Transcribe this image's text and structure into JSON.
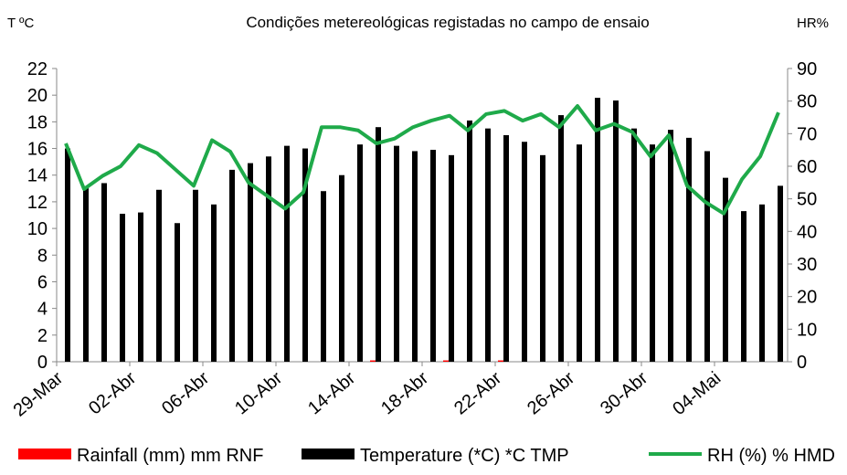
{
  "chart_data": {
    "type": "bar-line",
    "title": "Condições metereológicas registadas no campo de ensaio",
    "y_label": "T ºC",
    "y2_label": "HR%",
    "categories": [
      "29-Mar",
      null,
      null,
      null,
      "02-Abr",
      null,
      null,
      null,
      "06-Abr",
      null,
      null,
      null,
      "10-Abr",
      null,
      null,
      null,
      "14-Abr",
      null,
      null,
      null,
      "18-Abr",
      null,
      null,
      null,
      "22-Abr",
      null,
      null,
      null,
      "26-Abr",
      null,
      null,
      null,
      "30-Abr",
      null,
      null,
      null,
      "04-Mai",
      null,
      null,
      null
    ],
    "ylim": [
      0,
      22
    ],
    "yticks": [
      0,
      2,
      4,
      6,
      8,
      10,
      12,
      14,
      16,
      18,
      20,
      22
    ],
    "y2lim": [
      0,
      90
    ],
    "y2ticks": [
      0,
      10,
      20,
      30,
      40,
      50,
      60,
      70,
      80,
      90
    ],
    "series": [
      {
        "name": "Rainfall (mm) mm RNF",
        "color": "#ff0000",
        "kind": "bar",
        "values": [
          0,
          0,
          0,
          0,
          0,
          0,
          0,
          0,
          0,
          0,
          0,
          0,
          0,
          0,
          0,
          0,
          0,
          0.1,
          0,
          0,
          0,
          0.1,
          0,
          0,
          0.1,
          0,
          0,
          0,
          0,
          0,
          0,
          0,
          0,
          0,
          0,
          0,
          0,
          0,
          0,
          0
        ]
      },
      {
        "name": "Temperature (*C) *C TMP",
        "color": "#000000",
        "kind": "bar",
        "values": [
          16,
          13.1,
          13.4,
          11.1,
          11.2,
          12.9,
          10.4,
          12.9,
          11.8,
          14.4,
          14.9,
          15.4,
          16.2,
          16,
          12.8,
          14,
          16.3,
          17.6,
          16.2,
          15.8,
          15.9,
          15.5,
          18.1,
          17.5,
          17,
          16.5,
          15.5,
          18.5,
          16.3,
          19.8,
          19.6,
          17.5,
          16.3,
          17.4,
          16.8,
          15.8,
          13.8,
          11.3,
          11.8,
          13.2
        ]
      },
      {
        "name": "RH (%) % HMD",
        "color": "#1faa4a",
        "kind": "line",
        "axis": "y2",
        "values": [
          67,
          53,
          57,
          60,
          66.5,
          64,
          59,
          54,
          68,
          64.5,
          55,
          51,
          47,
          52,
          72,
          72,
          71,
          67,
          68.5,
          72,
          74,
          75.5,
          71,
          76,
          77,
          74,
          76,
          72,
          78.5,
          71,
          73,
          70.5,
          63,
          69.5,
          54,
          49,
          45.5,
          56,
          63,
          76.5
        ]
      }
    ]
  }
}
